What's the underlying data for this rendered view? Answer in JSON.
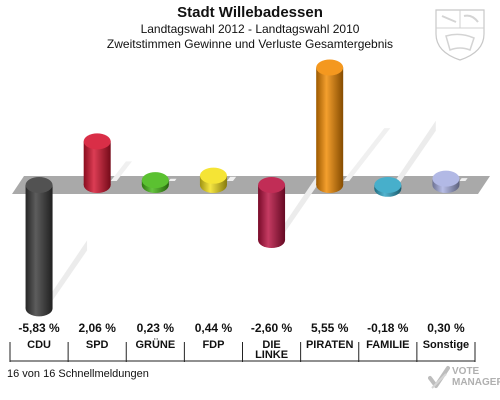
{
  "header": {
    "title": "Stadt Willebadessen",
    "subtitle": "Landtagswahl 2012 - Landtagswahl 2010",
    "description": "Zweitstimmen Gewinne und Verluste Gesamtergebnis"
  },
  "footer": {
    "status": "16 von 16 Schnellmeldungen",
    "brand_line1": "VOTE",
    "brand_line2": "MANAGER"
  },
  "chart_data": {
    "type": "bar",
    "title": "Stadt Willebadessen",
    "subtitle": "Landtagswahl 2012 - Landtagswahl 2010",
    "categories": [
      "CDU",
      "SPD",
      "GRÜNE",
      "FDP",
      "DIE LINKE",
      "PIRATEN",
      "FAMILIE",
      "Sonstige"
    ],
    "category_lines": [
      [
        "CDU"
      ],
      [
        "SPD"
      ],
      [
        "GRÜNE"
      ],
      [
        "FDP"
      ],
      [
        "DIE",
        "LINKE"
      ],
      [
        "PIRATEN"
      ],
      [
        "FAMILIE"
      ],
      [
        "Sonstige"
      ]
    ],
    "values": [
      -5.83,
      2.06,
      0.23,
      0.44,
      -2.6,
      5.55,
      -0.18,
      0.3
    ],
    "value_labels": [
      "-5,83 %",
      "2,06 %",
      "0,23 %",
      "0,44 %",
      "-2,60 %",
      "5,55 %",
      "-0,18 %",
      "0,30 %"
    ],
    "colors": [
      "#3a3a3a",
      "#d4122e",
      "#45b815",
      "#f4e01a",
      "#b8103f",
      "#f28a00",
      "#2ea4c4",
      "#a8b0e2"
    ],
    "ylim": [
      -6,
      6
    ],
    "grid": false,
    "legend": "none"
  }
}
